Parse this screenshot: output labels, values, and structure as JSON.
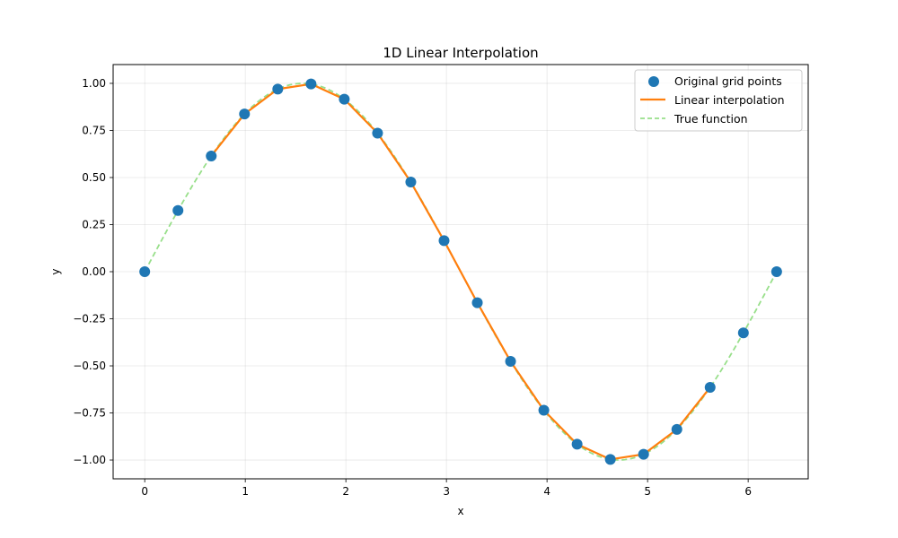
{
  "chart_data": {
    "type": "line",
    "title": "1D Linear Interpolation",
    "xlabel": "x",
    "ylabel": "y",
    "xlim": [
      -0.314,
      6.597
    ],
    "ylim": [
      -1.0998,
      1.0998
    ],
    "xticks": [
      0,
      1,
      2,
      3,
      4,
      5,
      6
    ],
    "xtick_labels": [
      "0",
      "1",
      "2",
      "3",
      "4",
      "5",
      "6"
    ],
    "yticks": [
      1.0,
      0.75,
      0.5,
      0.25,
      0.0,
      -0.25,
      -0.5,
      -0.75,
      -1.0
    ],
    "ytick_labels": [
      "1.00",
      "0.75",
      "0.50",
      "0.25",
      "0.00",
      "−0.25",
      "−0.50",
      "−0.75",
      "−1.00"
    ],
    "grid": true,
    "legend_position": "upper right",
    "series": [
      {
        "name": "Original grid points",
        "kind": "scatter",
        "color": "#1f77b4",
        "x": [
          0.0,
          0.3307,
          0.6614,
          0.9921,
          1.3228,
          1.6535,
          1.9842,
          2.3149,
          2.6456,
          2.9762,
          3.3069,
          3.6376,
          3.9683,
          4.299,
          4.6297,
          4.9604,
          5.2911,
          5.6218,
          5.9525,
          6.2832
        ],
        "y": [
          0.0,
          0.3247,
          0.6142,
          0.8372,
          0.9694,
          0.9966,
          0.9158,
          0.7357,
          0.4759,
          0.1646,
          -0.1646,
          -0.4759,
          -0.7357,
          -0.9158,
          -0.9966,
          -0.9694,
          -0.8372,
          -0.6142,
          -0.3247,
          0.0
        ]
      },
      {
        "name": "Linear interpolation",
        "kind": "line",
        "color": "#ff7f0e",
        "x": [
          0.6614,
          0.9921,
          1.3228,
          1.6535,
          1.9842,
          2.3149,
          2.6456,
          2.9762,
          3.3069,
          3.6376,
          3.9683,
          4.299,
          4.6297,
          4.9604,
          5.2911,
          5.6218
        ],
        "y": [
          0.6142,
          0.8372,
          0.9694,
          0.9966,
          0.9158,
          0.7357,
          0.4759,
          0.1646,
          -0.1646,
          -0.4759,
          -0.7357,
          -0.9158,
          -0.9966,
          -0.9694,
          -0.8372,
          -0.6142
        ]
      },
      {
        "name": "True function",
        "kind": "dashed-line",
        "color": "#98df8a",
        "function": "sin(x)",
        "x_range": [
          0,
          6.2832
        ]
      }
    ]
  }
}
